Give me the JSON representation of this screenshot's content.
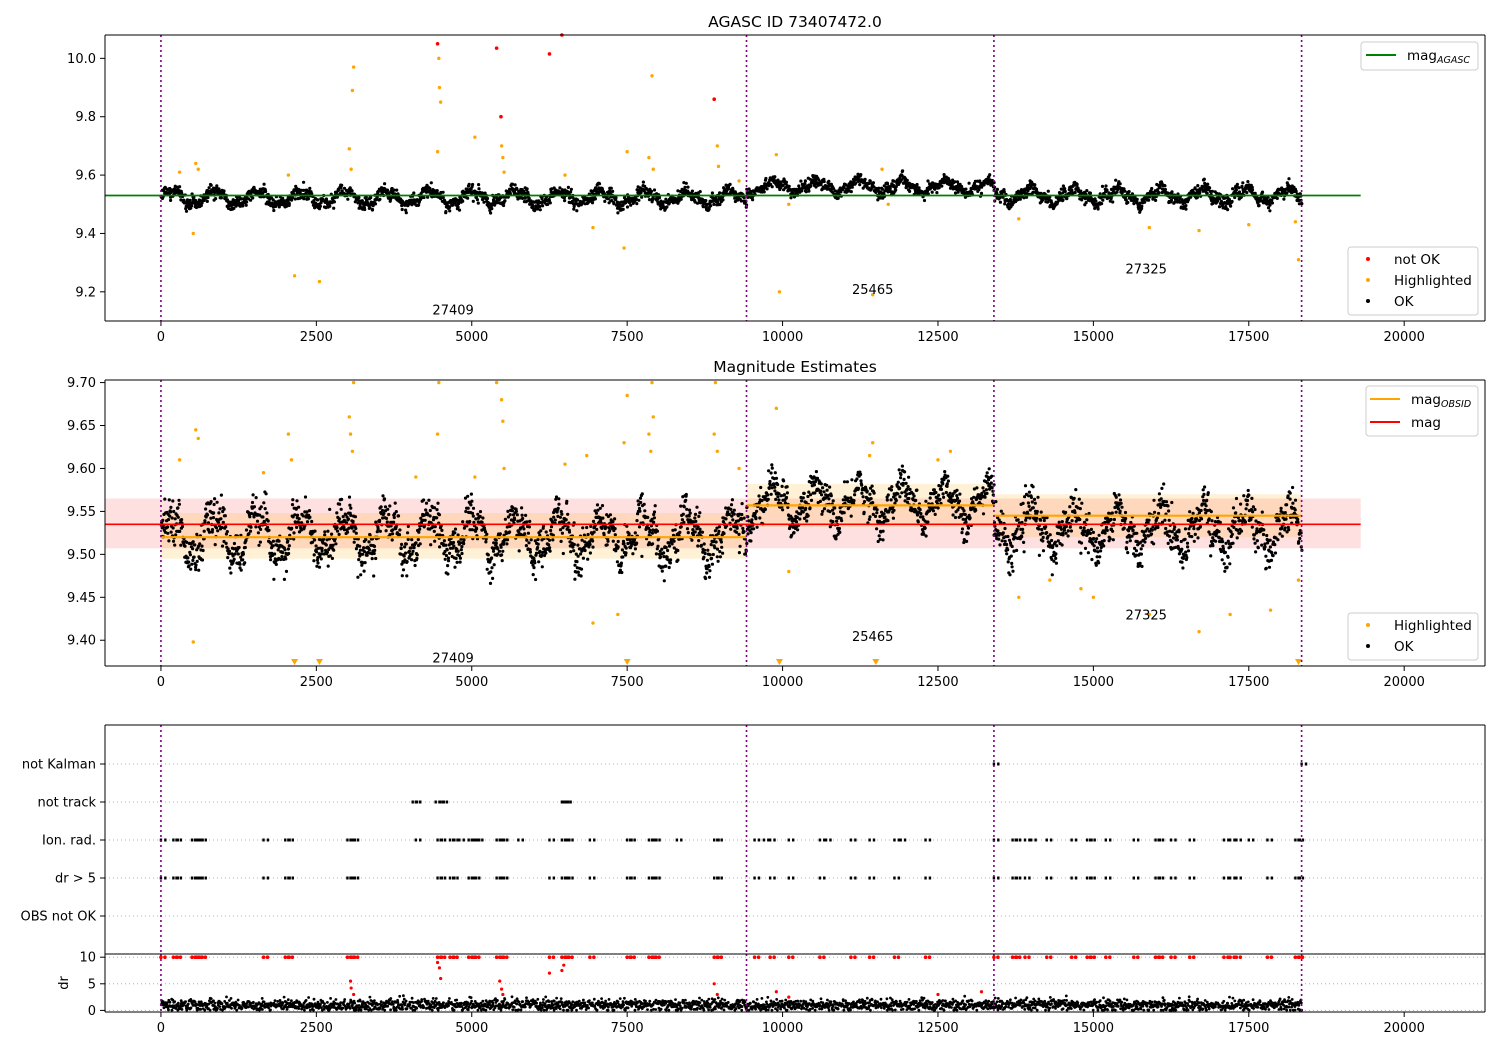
{
  "chart_data": [
    {
      "type": "scatter",
      "title": "AGASC ID 73407472.0",
      "xlabel": "",
      "ylabel": "",
      "xlim": [
        -900,
        21300
      ],
      "ylim": [
        9.1,
        10.08
      ],
      "x_ticks": [
        "0",
        "2500",
        "5000",
        "7500",
        "10000",
        "12500",
        "15000",
        "17500",
        "20000"
      ],
      "y_ticks": [
        "9.2",
        "9.4",
        "9.6",
        "9.8",
        "10.0"
      ],
      "observation_boundaries": [
        0,
        9420,
        13400,
        18350
      ],
      "obsid_labels": [
        {
          "text": "27409",
          "x": 4700,
          "y": 9.14
        },
        {
          "text": "25465",
          "x": 11450,
          "y": 9.21
        },
        {
          "text": "27325",
          "x": 15850,
          "y": 9.28
        }
      ],
      "mag_agasc": 9.53,
      "mag_agasc_x_range": [
        -900,
        19300
      ],
      "ok_segments": [
        {
          "x": [
            0,
            9420
          ],
          "mean": 9.522,
          "spread": 0.025
        },
        {
          "x": [
            9420,
            13400
          ],
          "mean": 9.56,
          "spread": 0.022
        },
        {
          "x": [
            13400,
            18350
          ],
          "mean": 9.53,
          "spread": 0.025
        }
      ],
      "highlighted_points": [
        [
          300,
          9.61
        ],
        [
          560,
          9.64
        ],
        [
          600,
          9.62
        ],
        [
          520,
          9.4
        ],
        [
          2050,
          9.6
        ],
        [
          2150,
          9.255
        ],
        [
          2550,
          9.235
        ],
        [
          3030,
          9.69
        ],
        [
          3060,
          9.62
        ],
        [
          3100,
          9.97
        ],
        [
          3080,
          9.89
        ],
        [
          4450,
          9.68
        ],
        [
          4470,
          10.0
        ],
        [
          4480,
          9.9
        ],
        [
          4500,
          9.85
        ],
        [
          5050,
          9.73
        ],
        [
          5480,
          9.7
        ],
        [
          5500,
          9.66
        ],
        [
          5520,
          9.61
        ],
        [
          6500,
          9.6
        ],
        [
          6950,
          9.42
        ],
        [
          7450,
          9.35
        ],
        [
          7500,
          9.68
        ],
        [
          7850,
          9.66
        ],
        [
          7900,
          9.94
        ],
        [
          7920,
          9.62
        ],
        [
          8900,
          9.86
        ],
        [
          8950,
          9.7
        ],
        [
          8970,
          9.63
        ],
        [
          9300,
          9.58
        ],
        [
          9900,
          9.67
        ],
        [
          9950,
          9.2
        ],
        [
          10100,
          9.5
        ],
        [
          11450,
          9.19
        ],
        [
          11600,
          9.62
        ],
        [
          11700,
          9.5
        ],
        [
          13800,
          9.45
        ],
        [
          15900,
          9.42
        ],
        [
          16700,
          9.41
        ],
        [
          17500,
          9.43
        ],
        [
          18300,
          9.31
        ],
        [
          18250,
          9.44
        ]
      ],
      "not_ok_points": [
        [
          4450,
          10.05
        ],
        [
          5400,
          10.035
        ],
        [
          5470,
          9.8
        ],
        [
          6250,
          10.015
        ],
        [
          6450,
          10.08
        ],
        [
          8900,
          9.86
        ]
      ],
      "legends": [
        {
          "placement": "upper right",
          "entries": [
            {
              "label_main": "mag",
              "label_sub": "AGASC",
              "color": "#008000",
              "kind": "line"
            }
          ]
        },
        {
          "placement": "lower right",
          "entries": [
            {
              "label": "not OK",
              "color": "#ff0000",
              "kind": "dot"
            },
            {
              "label": "Highlighted",
              "color": "#ffa500",
              "kind": "dot"
            },
            {
              "label": "OK",
              "color": "#000000",
              "kind": "dot"
            }
          ]
        }
      ]
    },
    {
      "type": "scatter",
      "title": "Magnitude Estimates",
      "xlabel": "",
      "ylabel": "",
      "xlim": [
        -900,
        21300
      ],
      "ylim": [
        9.37,
        9.703
      ],
      "x_ticks": [
        "0",
        "2500",
        "5000",
        "7500",
        "10000",
        "12500",
        "15000",
        "17500",
        "20000"
      ],
      "y_ticks": [
        "9.40",
        "9.45",
        "9.50",
        "9.55",
        "9.60",
        "9.65",
        "9.70"
      ],
      "observation_boundaries": [
        0,
        9420,
        13400,
        18350
      ],
      "obsid_labels": [
        {
          "text": "27409",
          "x": 4700,
          "y": 9.38
        },
        {
          "text": "25465",
          "x": 11450,
          "y": 9.405
        },
        {
          "text": "27325",
          "x": 15850,
          "y": 9.43
        }
      ],
      "mag": 9.535,
      "mag_band": [
        9.507,
        9.565
      ],
      "mag_x_range": [
        -900,
        19300
      ],
      "mag_obsid": [
        {
          "x": [
            0,
            9420
          ],
          "value": 9.52,
          "band": [
            9.495,
            9.548
          ]
        },
        {
          "x": [
            9420,
            13400
          ],
          "value": 9.557,
          "band": [
            9.532,
            9.582
          ]
        },
        {
          "x": [
            13400,
            18350
          ],
          "value": 9.545,
          "band": [
            9.52,
            9.57
          ]
        }
      ],
      "ok_segments": [
        {
          "x": [
            0,
            9420
          ],
          "mean": 9.522,
          "spread": 0.025
        },
        {
          "x": [
            9420,
            13400
          ],
          "mean": 9.56,
          "spread": 0.022
        },
        {
          "x": [
            13400,
            18350
          ],
          "mean": 9.53,
          "spread": 0.025
        }
      ],
      "highlighted_points": [
        [
          300,
          9.61
        ],
        [
          520,
          9.398
        ],
        [
          560,
          9.645
        ],
        [
          600,
          9.635
        ],
        [
          1650,
          9.595
        ],
        [
          2050,
          9.64
        ],
        [
          2100,
          9.61
        ],
        [
          3030,
          9.66
        ],
        [
          3050,
          9.64
        ],
        [
          3080,
          9.62
        ],
        [
          3100,
          9.7
        ],
        [
          4100,
          9.59
        ],
        [
          4450,
          9.64
        ],
        [
          4470,
          9.7
        ],
        [
          5050,
          9.59
        ],
        [
          5400,
          9.7
        ],
        [
          5480,
          9.68
        ],
        [
          5500,
          9.655
        ],
        [
          5520,
          9.6
        ],
        [
          6500,
          9.605
        ],
        [
          6850,
          9.615
        ],
        [
          6950,
          9.42
        ],
        [
          7350,
          9.43
        ],
        [
          7450,
          9.63
        ],
        [
          7500,
          9.685
        ],
        [
          7850,
          9.64
        ],
        [
          7880,
          9.62
        ],
        [
          7900,
          9.7
        ],
        [
          7920,
          9.66
        ],
        [
          8900,
          9.64
        ],
        [
          8920,
          9.7
        ],
        [
          8950,
          9.62
        ],
        [
          9300,
          9.6
        ],
        [
          9900,
          9.67
        ],
        [
          10100,
          9.48
        ],
        [
          11400,
          9.615
        ],
        [
          11450,
          9.63
        ],
        [
          12500,
          9.61
        ],
        [
          12700,
          9.62
        ],
        [
          13800,
          9.45
        ],
        [
          14300,
          9.47
        ],
        [
          14800,
          9.46
        ],
        [
          15000,
          9.45
        ],
        [
          15900,
          9.43
        ],
        [
          16700,
          9.41
        ],
        [
          17200,
          9.43
        ],
        [
          17850,
          9.435
        ],
        [
          18300,
          9.47
        ]
      ],
      "clipped_low_points": [
        2150,
        2550,
        7500,
        9950,
        11500,
        18300
      ],
      "legends": [
        {
          "placement": "upper right",
          "entries": [
            {
              "label_main": "mag",
              "label_sub": "OBSID",
              "color": "#ffa500",
              "kind": "line"
            },
            {
              "label": "mag",
              "color": "#ff0000",
              "kind": "line"
            }
          ]
        },
        {
          "placement": "lower right",
          "entries": [
            {
              "label": "Highlighted",
              "color": "#ffa500",
              "kind": "dot"
            },
            {
              "label": "OK",
              "color": "#000000",
              "kind": "dot"
            }
          ]
        }
      ]
    },
    {
      "type": "scatter",
      "title": "",
      "xlabel": "",
      "ylabel": "",
      "xlim": [
        -900,
        21300
      ],
      "categories": [
        "not Kalman",
        "not track",
        "Ion. rad.",
        "dr > 5",
        "OBS not OK"
      ],
      "observation_boundaries": [
        0,
        9420,
        13400,
        18350
      ],
      "flag_points": {
        "not Kalman": [
          13400,
          18350
        ],
        "not track": [
          4050,
          4100,
          4420,
          4480,
          4530,
          6450,
          6480,
          6520
        ],
        "Ion. rad.": [
          0,
          200,
          250,
          500,
          550,
          600,
          650,
          1650,
          2000,
          2050,
          3000,
          3050,
          3100,
          4100,
          4450,
          4500,
          4650,
          4700,
          4800,
          4950,
          5000,
          5050,
          5100,
          5400,
          5450,
          5500,
          5750,
          6250,
          6450,
          6500,
          6550,
          6900,
          7500,
          7550,
          7850,
          7900,
          7950,
          8300,
          8900,
          8950,
          9550,
          9700,
          9800,
          10100,
          10600,
          10700,
          11100,
          11400,
          11800,
          11900,
          12300,
          13400,
          13700,
          13750,
          13900,
          14000,
          14250,
          14650,
          14900,
          14950,
          15200,
          15650,
          16000,
          16050,
          16250,
          16550,
          17100,
          17200,
          17300,
          17500,
          17800,
          18250,
          18300
        ],
        "dr > 5": [
          0,
          200,
          250,
          500,
          550,
          600,
          650,
          1650,
          2000,
          2050,
          3000,
          3050,
          3100,
          4450,
          4500,
          4650,
          4700,
          4950,
          5000,
          5050,
          5400,
          5450,
          5500,
          6250,
          6450,
          6500,
          6550,
          6900,
          7500,
          7550,
          7850,
          7900,
          7950,
          8900,
          8950,
          9550,
          9800,
          10100,
          10600,
          11100,
          11400,
          11800,
          12300,
          13400,
          13700,
          13750,
          13900,
          14250,
          14650,
          14900,
          14950,
          15200,
          15650,
          16000,
          16050,
          16250,
          16550,
          17100,
          17200,
          17300,
          17800,
          18250,
          18300
        ],
        "OBS not OK": []
      }
    },
    {
      "type": "scatter",
      "title": "",
      "xlabel": "",
      "ylabel": "dr",
      "xlim": [
        -900,
        21300
      ],
      "ylim": [
        -0.3,
        10.6
      ],
      "x_ticks": [
        "0",
        "2500",
        "5000",
        "7500",
        "10000",
        "12500",
        "15000",
        "17500",
        "20000"
      ],
      "y_ticks": [
        "0",
        "5",
        "10"
      ],
      "observation_boundaries": [
        0,
        9420,
        13400,
        18350
      ],
      "baseline": 1.0,
      "baseline_x_range": [
        0,
        18350
      ],
      "clipped_points_at_10": [
        0,
        200,
        250,
        500,
        550,
        600,
        650,
        1650,
        2000,
        2050,
        3000,
        3050,
        3100,
        4450,
        4500,
        4650,
        4700,
        4950,
        5000,
        5050,
        5400,
        5450,
        5500,
        6250,
        6450,
        6500,
        6550,
        6900,
        7500,
        7550,
        7850,
        7900,
        7950,
        8900,
        8950,
        9550,
        9800,
        10100,
        10600,
        11100,
        11400,
        11800,
        12300,
        13400,
        13700,
        13750,
        13900,
        14250,
        14650,
        14900,
        14950,
        15200,
        15650,
        16000,
        16050,
        16250,
        16550,
        17100,
        17200,
        17300,
        17800,
        18250,
        18300
      ],
      "elevated_points": [
        [
          3050,
          5.5
        ],
        [
          3060,
          4.2
        ],
        [
          3100,
          3.0
        ],
        [
          4450,
          9.0
        ],
        [
          4480,
          8.0
        ],
        [
          4500,
          6.0
        ],
        [
          5450,
          5.5
        ],
        [
          5480,
          4.0
        ],
        [
          5500,
          3.0
        ],
        [
          6250,
          7.0
        ],
        [
          6450,
          7.5
        ],
        [
          6480,
          8.5
        ],
        [
          8900,
          5.0
        ],
        [
          8950,
          3.0
        ],
        [
          9900,
          3.5
        ],
        [
          10100,
          2.5
        ],
        [
          12500,
          3.0
        ],
        [
          13200,
          3.5
        ]
      ]
    }
  ]
}
